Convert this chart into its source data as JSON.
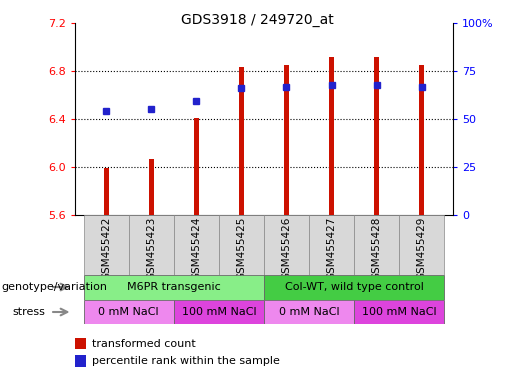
{
  "title": "GDS3918 / 249720_at",
  "samples": [
    "GSM455422",
    "GSM455423",
    "GSM455424",
    "GSM455425",
    "GSM455426",
    "GSM455427",
    "GSM455428",
    "GSM455429"
  ],
  "bar_values": [
    5.99,
    6.07,
    6.41,
    6.83,
    6.85,
    6.92,
    6.92,
    6.85
  ],
  "bar_bottom": 5.6,
  "percentile_values": [
    6.47,
    6.48,
    6.55,
    6.66,
    6.67,
    6.68,
    6.68,
    6.67
  ],
  "ylim_left": [
    5.6,
    7.2
  ],
  "ylim_right": [
    0,
    100
  ],
  "yticks_left": [
    5.6,
    6.0,
    6.4,
    6.8,
    7.2
  ],
  "yticks_right": [
    0,
    25,
    50,
    75,
    100
  ],
  "ytick_labels_right": [
    "0",
    "25",
    "50",
    "75",
    "100%"
  ],
  "bar_color": "#cc1100",
  "dot_color": "#2222cc",
  "grid_color": "#000000",
  "genotype_groups": [
    {
      "label": "M6PR transgenic",
      "start": 0,
      "end": 4,
      "color": "#88ee88"
    },
    {
      "label": "Col-WT, wild type control",
      "start": 4,
      "end": 8,
      "color": "#44cc44"
    }
  ],
  "stress_groups": [
    {
      "label": "0 mM NaCl",
      "start": 0,
      "end": 2,
      "color": "#ee88ee"
    },
    {
      "label": "100 mM NaCl",
      "start": 2,
      "end": 4,
      "color": "#dd44dd"
    },
    {
      "label": "0 mM NaCl",
      "start": 4,
      "end": 6,
      "color": "#ee88ee"
    },
    {
      "label": "100 mM NaCl",
      "start": 6,
      "end": 8,
      "color": "#dd44dd"
    }
  ],
  "legend_bar_label": "transformed count",
  "legend_dot_label": "percentile rank within the sample",
  "xlabel_genotype": "genotype/variation",
  "xlabel_stress": "stress",
  "title_fontsize": 10,
  "tick_fontsize": 8,
  "label_fontsize": 8.5,
  "bar_width": 0.12,
  "sample_box_color": "#d8d8d8"
}
